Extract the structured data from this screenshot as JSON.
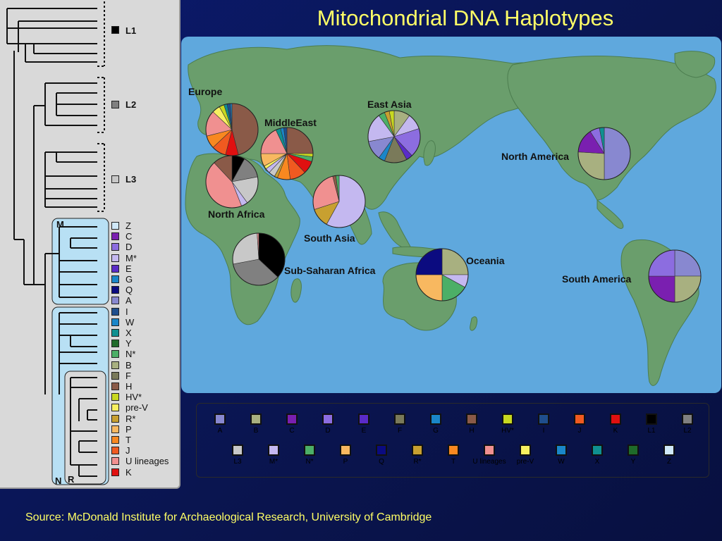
{
  "title": "Mitochondrial DNA Haplotypes",
  "source": "Source: McDonald Institute for Archaeological Research, University of Cambridge",
  "tree": {
    "major_groups": [
      {
        "label": "L1",
        "color": "#000000"
      },
      {
        "label": "L2",
        "color": "#808080"
      },
      {
        "label": "L3",
        "color": "#c8c8c8"
      }
    ],
    "clade_labels": [
      "M",
      "N",
      "R"
    ],
    "haplogroups": [
      {
        "label": "Z",
        "color": "#cfe8f8"
      },
      {
        "label": "C",
        "color": "#7a1fb0"
      },
      {
        "label": "D",
        "color": "#8c6de0"
      },
      {
        "label": "M*",
        "color": "#c4b8f0"
      },
      {
        "label": "E",
        "color": "#5a2bc8"
      },
      {
        "label": "G",
        "color": "#1a86c8"
      },
      {
        "label": "Q",
        "color": "#0b0b80"
      },
      {
        "label": "A",
        "color": "#8888d0"
      },
      {
        "label": "I",
        "color": "#1f4e8c"
      },
      {
        "label": "W",
        "color": "#1a86c8"
      },
      {
        "label": "X",
        "color": "#0f9090"
      },
      {
        "label": "Y",
        "color": "#1f6b2a"
      },
      {
        "label": "N*",
        "color": "#4caf67"
      },
      {
        "label": "B",
        "color": "#a8b080"
      },
      {
        "label": "F",
        "color": "#7a7a5a"
      },
      {
        "label": "H",
        "color": "#8a5a48"
      },
      {
        "label": "HV*",
        "color": "#c8d820"
      },
      {
        "label": "pre-V",
        "color": "#f8f060"
      },
      {
        "label": "R*",
        "color": "#c8a030"
      },
      {
        "label": "P",
        "color": "#f8b860"
      },
      {
        "label": "T",
        "color": "#f88820"
      },
      {
        "label": "J",
        "color": "#f05a20"
      },
      {
        "label": "U lineages",
        "color": "#f09090"
      },
      {
        "label": "K",
        "color": "#e01010"
      }
    ]
  },
  "regions": [
    {
      "name": "Europe"
    },
    {
      "name": "MiddleEast"
    },
    {
      "name": "East Asia"
    },
    {
      "name": "North Africa"
    },
    {
      "name": "South Asia"
    },
    {
      "name": "Sub-Saharan Africa"
    },
    {
      "name": "Oceania"
    },
    {
      "name": "North America"
    },
    {
      "name": "South America"
    }
  ],
  "pies": [
    {
      "region": "Europe",
      "slices": [
        {
          "hg": "H",
          "value": 46,
          "color": "#8a5a48"
        },
        {
          "hg": "K",
          "value": 8,
          "color": "#e01010"
        },
        {
          "hg": "J",
          "value": 9,
          "color": "#f05a20"
        },
        {
          "hg": "T",
          "value": 8,
          "color": "#f88820"
        },
        {
          "hg": "U lineages",
          "value": 16,
          "color": "#f09090"
        },
        {
          "hg": "pre-V",
          "value": 5,
          "color": "#f8f060"
        },
        {
          "hg": "HV*",
          "value": 3,
          "color": "#c8d820"
        },
        {
          "hg": "X",
          "value": 2,
          "color": "#0f9090"
        },
        {
          "hg": "I",
          "value": 2,
          "color": "#1f4e8c"
        },
        {
          "hg": "W",
          "value": 1,
          "color": "#1a86c8"
        }
      ]
    },
    {
      "region": "MiddleEast",
      "slices": [
        {
          "hg": "H",
          "value": 25,
          "color": "#8a5a48"
        },
        {
          "hg": "HV*",
          "value": 2,
          "color": "#c8d820"
        },
        {
          "hg": "N*",
          "value": 3,
          "color": "#4caf67"
        },
        {
          "hg": "K",
          "value": 8,
          "color": "#e01010"
        },
        {
          "hg": "J",
          "value": 10,
          "color": "#f05a20"
        },
        {
          "hg": "T",
          "value": 8,
          "color": "#f88820"
        },
        {
          "hg": "R*",
          "value": 2,
          "color": "#c8a030"
        },
        {
          "hg": "L3",
          "value": 4,
          "color": "#c8c8c8"
        },
        {
          "hg": "M*",
          "value": 3,
          "color": "#c4b8f0"
        },
        {
          "hg": "pre-V",
          "value": 2,
          "color": "#f8f060"
        },
        {
          "hg": "P",
          "value": 8,
          "color": "#f8b860"
        },
        {
          "hg": "U lineages",
          "value": 18,
          "color": "#f09090"
        },
        {
          "hg": "X",
          "value": 3,
          "color": "#0f9090"
        },
        {
          "hg": "W",
          "value": 2,
          "color": "#1a86c8"
        },
        {
          "hg": "I",
          "value": 2,
          "color": "#1f4e8c"
        }
      ]
    },
    {
      "region": "East Asia",
      "slices": [
        {
          "hg": "B",
          "value": 10,
          "color": "#a8b080"
        },
        {
          "hg": "M*",
          "value": 10,
          "color": "#c4b8f0"
        },
        {
          "hg": "D",
          "value": 18,
          "color": "#8c6de0"
        },
        {
          "hg": "E",
          "value": 4,
          "color": "#5a2bc8"
        },
        {
          "hg": "F",
          "value": 14,
          "color": "#7a7a5a"
        },
        {
          "hg": "G",
          "value": 4,
          "color": "#1a86c8"
        },
        {
          "hg": "A",
          "value": 12,
          "color": "#8888d0"
        },
        {
          "hg": "M*",
          "value": 18,
          "color": "#c4b8f0"
        },
        {
          "hg": "N*",
          "value": 4,
          "color": "#4caf67"
        },
        {
          "hg": "R*",
          "value": 3,
          "color": "#c8a030"
        },
        {
          "hg": "HV*",
          "value": 3,
          "color": "#c8d820"
        }
      ]
    },
    {
      "region": "North Africa",
      "slices": [
        {
          "hg": "L1",
          "value": 8,
          "color": "#000000"
        },
        {
          "hg": "L2",
          "value": 14,
          "color": "#808080"
        },
        {
          "hg": "L3",
          "value": 18,
          "color": "#c8c8c8"
        },
        {
          "hg": "M*",
          "value": 4,
          "color": "#c4b8f0"
        },
        {
          "hg": "U lineages",
          "value": 44,
          "color": "#f09090"
        },
        {
          "hg": "H",
          "value": 12,
          "color": "#8a5a48"
        }
      ]
    },
    {
      "region": "South Asia",
      "slices": [
        {
          "hg": "M*",
          "value": 58,
          "color": "#c4b8f0"
        },
        {
          "hg": "R*",
          "value": 12,
          "color": "#c8a030"
        },
        {
          "hg": "U lineages",
          "value": 26,
          "color": "#f09090"
        },
        {
          "hg": "H",
          "value": 2,
          "color": "#8a5a48"
        },
        {
          "hg": "N*",
          "value": 2,
          "color": "#4caf67"
        }
      ]
    },
    {
      "region": "Sub-Saharan Africa",
      "slices": [
        {
          "hg": "L1",
          "value": 37,
          "color": "#000000"
        },
        {
          "hg": "L2",
          "value": 35,
          "color": "#808080"
        },
        {
          "hg": "L3",
          "value": 27,
          "color": "#c8c8c8"
        },
        {
          "hg": "U lineages",
          "value": 1,
          "color": "#f09090"
        }
      ]
    },
    {
      "region": "Oceania",
      "slices": [
        {
          "hg": "B",
          "value": 25,
          "color": "#a8b080"
        },
        {
          "hg": "M*",
          "value": 8,
          "color": "#c4b8f0"
        },
        {
          "hg": "N*",
          "value": 17,
          "color": "#4caf67"
        },
        {
          "hg": "P",
          "value": 25,
          "color": "#f8b860"
        },
        {
          "hg": "Q",
          "value": 25,
          "color": "#0b0b80"
        }
      ]
    },
    {
      "region": "North America",
      "slices": [
        {
          "hg": "A",
          "value": 50,
          "color": "#8888d0"
        },
        {
          "hg": "B",
          "value": 26,
          "color": "#a8b080"
        },
        {
          "hg": "C",
          "value": 15,
          "color": "#7a1fb0"
        },
        {
          "hg": "D",
          "value": 6,
          "color": "#8c6de0"
        },
        {
          "hg": "X",
          "value": 3,
          "color": "#0f9090"
        }
      ]
    },
    {
      "region": "South America",
      "slices": [
        {
          "hg": "A",
          "value": 25,
          "color": "#8888d0"
        },
        {
          "hg": "B",
          "value": 25,
          "color": "#a8b080"
        },
        {
          "hg": "C",
          "value": 25,
          "color": "#7a1fb0"
        },
        {
          "hg": "D",
          "value": 25,
          "color": "#8c6de0"
        }
      ]
    }
  ],
  "legend": {
    "row1": [
      {
        "label": "A",
        "color": "#8888d0"
      },
      {
        "label": "B",
        "color": "#a8b080"
      },
      {
        "label": "C",
        "color": "#7a1fb0"
      },
      {
        "label": "D",
        "color": "#8c6de0"
      },
      {
        "label": "E",
        "color": "#5a2bc8"
      },
      {
        "label": "F",
        "color": "#7a7a5a"
      },
      {
        "label": "G",
        "color": "#1a86c8"
      },
      {
        "label": "H",
        "color": "#8a5a48"
      },
      {
        "label": "HV*",
        "color": "#c8d820"
      },
      {
        "label": "I",
        "color": "#1f4e8c"
      },
      {
        "label": "J",
        "color": "#f05a20"
      },
      {
        "label": "K",
        "color": "#e01010"
      },
      {
        "label": "L1",
        "color": "#000000"
      },
      {
        "label": "L2",
        "color": "#808080"
      }
    ],
    "row2": [
      {
        "label": "L3",
        "color": "#c8c8c8"
      },
      {
        "label": "M*",
        "color": "#c4b8f0"
      },
      {
        "label": "N*",
        "color": "#4caf67"
      },
      {
        "label": "P",
        "color": "#f8b860"
      },
      {
        "label": "Q",
        "color": "#0b0b80"
      },
      {
        "label": "R*",
        "color": "#c8a030"
      },
      {
        "label": "T",
        "color": "#f88820"
      },
      {
        "label": "U lineages",
        "color": "#f09090"
      },
      {
        "label": "pre-V",
        "color": "#f8f060"
      },
      {
        "label": "W",
        "color": "#1a86c8"
      },
      {
        "label": "X",
        "color": "#0f9090"
      },
      {
        "label": "Y",
        "color": "#1f6b2a"
      },
      {
        "label": "Z",
        "color": "#cfe8f8"
      }
    ]
  }
}
